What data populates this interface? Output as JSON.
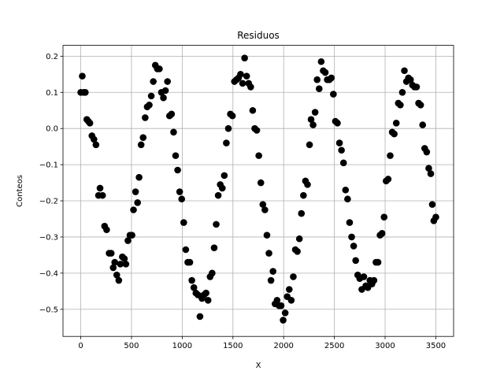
{
  "chart_data": {
    "type": "scatter",
    "title": "Residuos",
    "xlabel": "X",
    "ylabel": "Conteos",
    "xlim": [
      -175,
      3675
    ],
    "ylim": [
      -0.575,
      0.23
    ],
    "grid": true,
    "marker_color": "#000000",
    "xticks": [
      0,
      500,
      1000,
      1500,
      2000,
      2500,
      3000,
      3500
    ],
    "yticks": [
      -0.5,
      -0.4,
      -0.3,
      -0.2,
      -0.1,
      0.0,
      0.1,
      0.2
    ],
    "xtick_labels": [
      "0",
      "500",
      "1000",
      "1500",
      "2000",
      "2500",
      "3000",
      "3500"
    ],
    "ytick_labels": [
      "−0.5",
      "−0.4",
      "−0.3",
      "−0.2",
      "−0.1",
      "0.0",
      "0.1",
      "0.2"
    ],
    "points": [
      [
        0,
        0.1
      ],
      [
        15,
        0.145
      ],
      [
        30,
        0.1
      ],
      [
        45,
        0.1
      ],
      [
        60,
        0.025
      ],
      [
        75,
        0.02
      ],
      [
        90,
        0.015
      ],
      [
        110,
        -0.02
      ],
      [
        130,
        -0.03
      ],
      [
        150,
        -0.045
      ],
      [
        175,
        -0.185
      ],
      [
        190,
        -0.165
      ],
      [
        215,
        -0.185
      ],
      [
        235,
        -0.27
      ],
      [
        255,
        -0.28
      ],
      [
        280,
        -0.345
      ],
      [
        300,
        -0.345
      ],
      [
        320,
        -0.385
      ],
      [
        335,
        -0.37
      ],
      [
        355,
        -0.405
      ],
      [
        375,
        -0.42
      ],
      [
        390,
        -0.375
      ],
      [
        410,
        -0.355
      ],
      [
        430,
        -0.36
      ],
      [
        445,
        -0.375
      ],
      [
        465,
        -0.31
      ],
      [
        485,
        -0.295
      ],
      [
        505,
        -0.295
      ],
      [
        520,
        -0.225
      ],
      [
        540,
        -0.175
      ],
      [
        560,
        -0.205
      ],
      [
        575,
        -0.135
      ],
      [
        595,
        -0.045
      ],
      [
        615,
        -0.025
      ],
      [
        635,
        0.03
      ],
      [
        655,
        0.06
      ],
      [
        675,
        0.065
      ],
      [
        695,
        0.09
      ],
      [
        715,
        0.13
      ],
      [
        735,
        0.175
      ],
      [
        755,
        0.165
      ],
      [
        775,
        0.165
      ],
      [
        795,
        0.1
      ],
      [
        815,
        0.085
      ],
      [
        835,
        0.105
      ],
      [
        855,
        0.13
      ],
      [
        875,
        0.035
      ],
      [
        895,
        0.04
      ],
      [
        915,
        -0.01
      ],
      [
        935,
        -0.075
      ],
      [
        955,
        -0.115
      ],
      [
        975,
        -0.175
      ],
      [
        995,
        -0.195
      ],
      [
        1015,
        -0.26
      ],
      [
        1035,
        -0.335
      ],
      [
        1055,
        -0.37
      ],
      [
        1075,
        -0.37
      ],
      [
        1095,
        -0.42
      ],
      [
        1115,
        -0.44
      ],
      [
        1135,
        -0.455
      ],
      [
        1155,
        -0.46
      ],
      [
        1175,
        -0.52
      ],
      [
        1195,
        -0.47
      ],
      [
        1215,
        -0.46
      ],
      [
        1235,
        -0.455
      ],
      [
        1255,
        -0.475
      ],
      [
        1275,
        -0.41
      ],
      [
        1295,
        -0.4
      ],
      [
        1315,
        -0.33
      ],
      [
        1335,
        -0.265
      ],
      [
        1355,
        -0.185
      ],
      [
        1375,
        -0.155
      ],
      [
        1395,
        -0.165
      ],
      [
        1415,
        -0.13
      ],
      [
        1435,
        -0.04
      ],
      [
        1455,
        0.0
      ],
      [
        1475,
        0.04
      ],
      [
        1495,
        0.035
      ],
      [
        1515,
        0.13
      ],
      [
        1535,
        0.135
      ],
      [
        1555,
        0.14
      ],
      [
        1575,
        0.15
      ],
      [
        1595,
        0.125
      ],
      [
        1615,
        0.195
      ],
      [
        1635,
        0.145
      ],
      [
        1655,
        0.125
      ],
      [
        1675,
        0.115
      ],
      [
        1695,
        0.05
      ],
      [
        1715,
        0.0
      ],
      [
        1735,
        -0.005
      ],
      [
        1755,
        -0.075
      ],
      [
        1775,
        -0.15
      ],
      [
        1795,
        -0.21
      ],
      [
        1815,
        -0.225
      ],
      [
        1835,
        -0.295
      ],
      [
        1855,
        -0.345
      ],
      [
        1875,
        -0.42
      ],
      [
        1895,
        -0.395
      ],
      [
        1915,
        -0.485
      ],
      [
        1935,
        -0.475
      ],
      [
        1955,
        -0.49
      ],
      [
        1975,
        -0.49
      ],
      [
        1995,
        -0.53
      ],
      [
        2015,
        -0.51
      ],
      [
        2035,
        -0.465
      ],
      [
        2055,
        -0.445
      ],
      [
        2075,
        -0.475
      ],
      [
        2095,
        -0.41
      ],
      [
        2115,
        -0.335
      ],
      [
        2135,
        -0.34
      ],
      [
        2155,
        -0.305
      ],
      [
        2175,
        -0.235
      ],
      [
        2195,
        -0.185
      ],
      [
        2215,
        -0.145
      ],
      [
        2235,
        -0.155
      ],
      [
        2255,
        -0.045
      ],
      [
        2270,
        0.025
      ],
      [
        2290,
        0.01
      ],
      [
        2310,
        0.045
      ],
      [
        2330,
        0.135
      ],
      [
        2350,
        0.11
      ],
      [
        2370,
        0.185
      ],
      [
        2390,
        0.16
      ],
      [
        2410,
        0.155
      ],
      [
        2430,
        0.135
      ],
      [
        2450,
        0.135
      ],
      [
        2470,
        0.14
      ],
      [
        2490,
        0.095
      ],
      [
        2510,
        0.02
      ],
      [
        2530,
        0.015
      ],
      [
        2550,
        -0.04
      ],
      [
        2570,
        -0.06
      ],
      [
        2590,
        -0.095
      ],
      [
        2610,
        -0.17
      ],
      [
        2630,
        -0.195
      ],
      [
        2650,
        -0.26
      ],
      [
        2670,
        -0.3
      ],
      [
        2690,
        -0.325
      ],
      [
        2710,
        -0.365
      ],
      [
        2730,
        -0.405
      ],
      [
        2750,
        -0.415
      ],
      [
        2770,
        -0.445
      ],
      [
        2790,
        -0.41
      ],
      [
        2810,
        -0.435
      ],
      [
        2830,
        -0.44
      ],
      [
        2850,
        -0.42
      ],
      [
        2870,
        -0.43
      ],
      [
        2890,
        -0.42
      ],
      [
        2910,
        -0.37
      ],
      [
        2930,
        -0.37
      ],
      [
        2950,
        -0.295
      ],
      [
        2970,
        -0.29
      ],
      [
        2990,
        -0.245
      ],
      [
        3010,
        -0.145
      ],
      [
        3030,
        -0.14
      ],
      [
        3050,
        -0.075
      ],
      [
        3070,
        -0.01
      ],
      [
        3090,
        -0.015
      ],
      [
        3110,
        0.015
      ],
      [
        3130,
        0.07
      ],
      [
        3150,
        0.065
      ],
      [
        3170,
        0.1
      ],
      [
        3190,
        0.16
      ],
      [
        3210,
        0.13
      ],
      [
        3230,
        0.14
      ],
      [
        3250,
        0.135
      ],
      [
        3270,
        0.12
      ],
      [
        3290,
        0.115
      ],
      [
        3310,
        0.115
      ],
      [
        3330,
        0.07
      ],
      [
        3350,
        0.065
      ],
      [
        3370,
        0.01
      ],
      [
        3390,
        -0.055
      ],
      [
        3410,
        -0.065
      ],
      [
        3430,
        -0.11
      ],
      [
        3450,
        -0.125
      ],
      [
        3465,
        -0.21
      ],
      [
        3480,
        -0.255
      ],
      [
        3500,
        -0.245
      ]
    ]
  }
}
